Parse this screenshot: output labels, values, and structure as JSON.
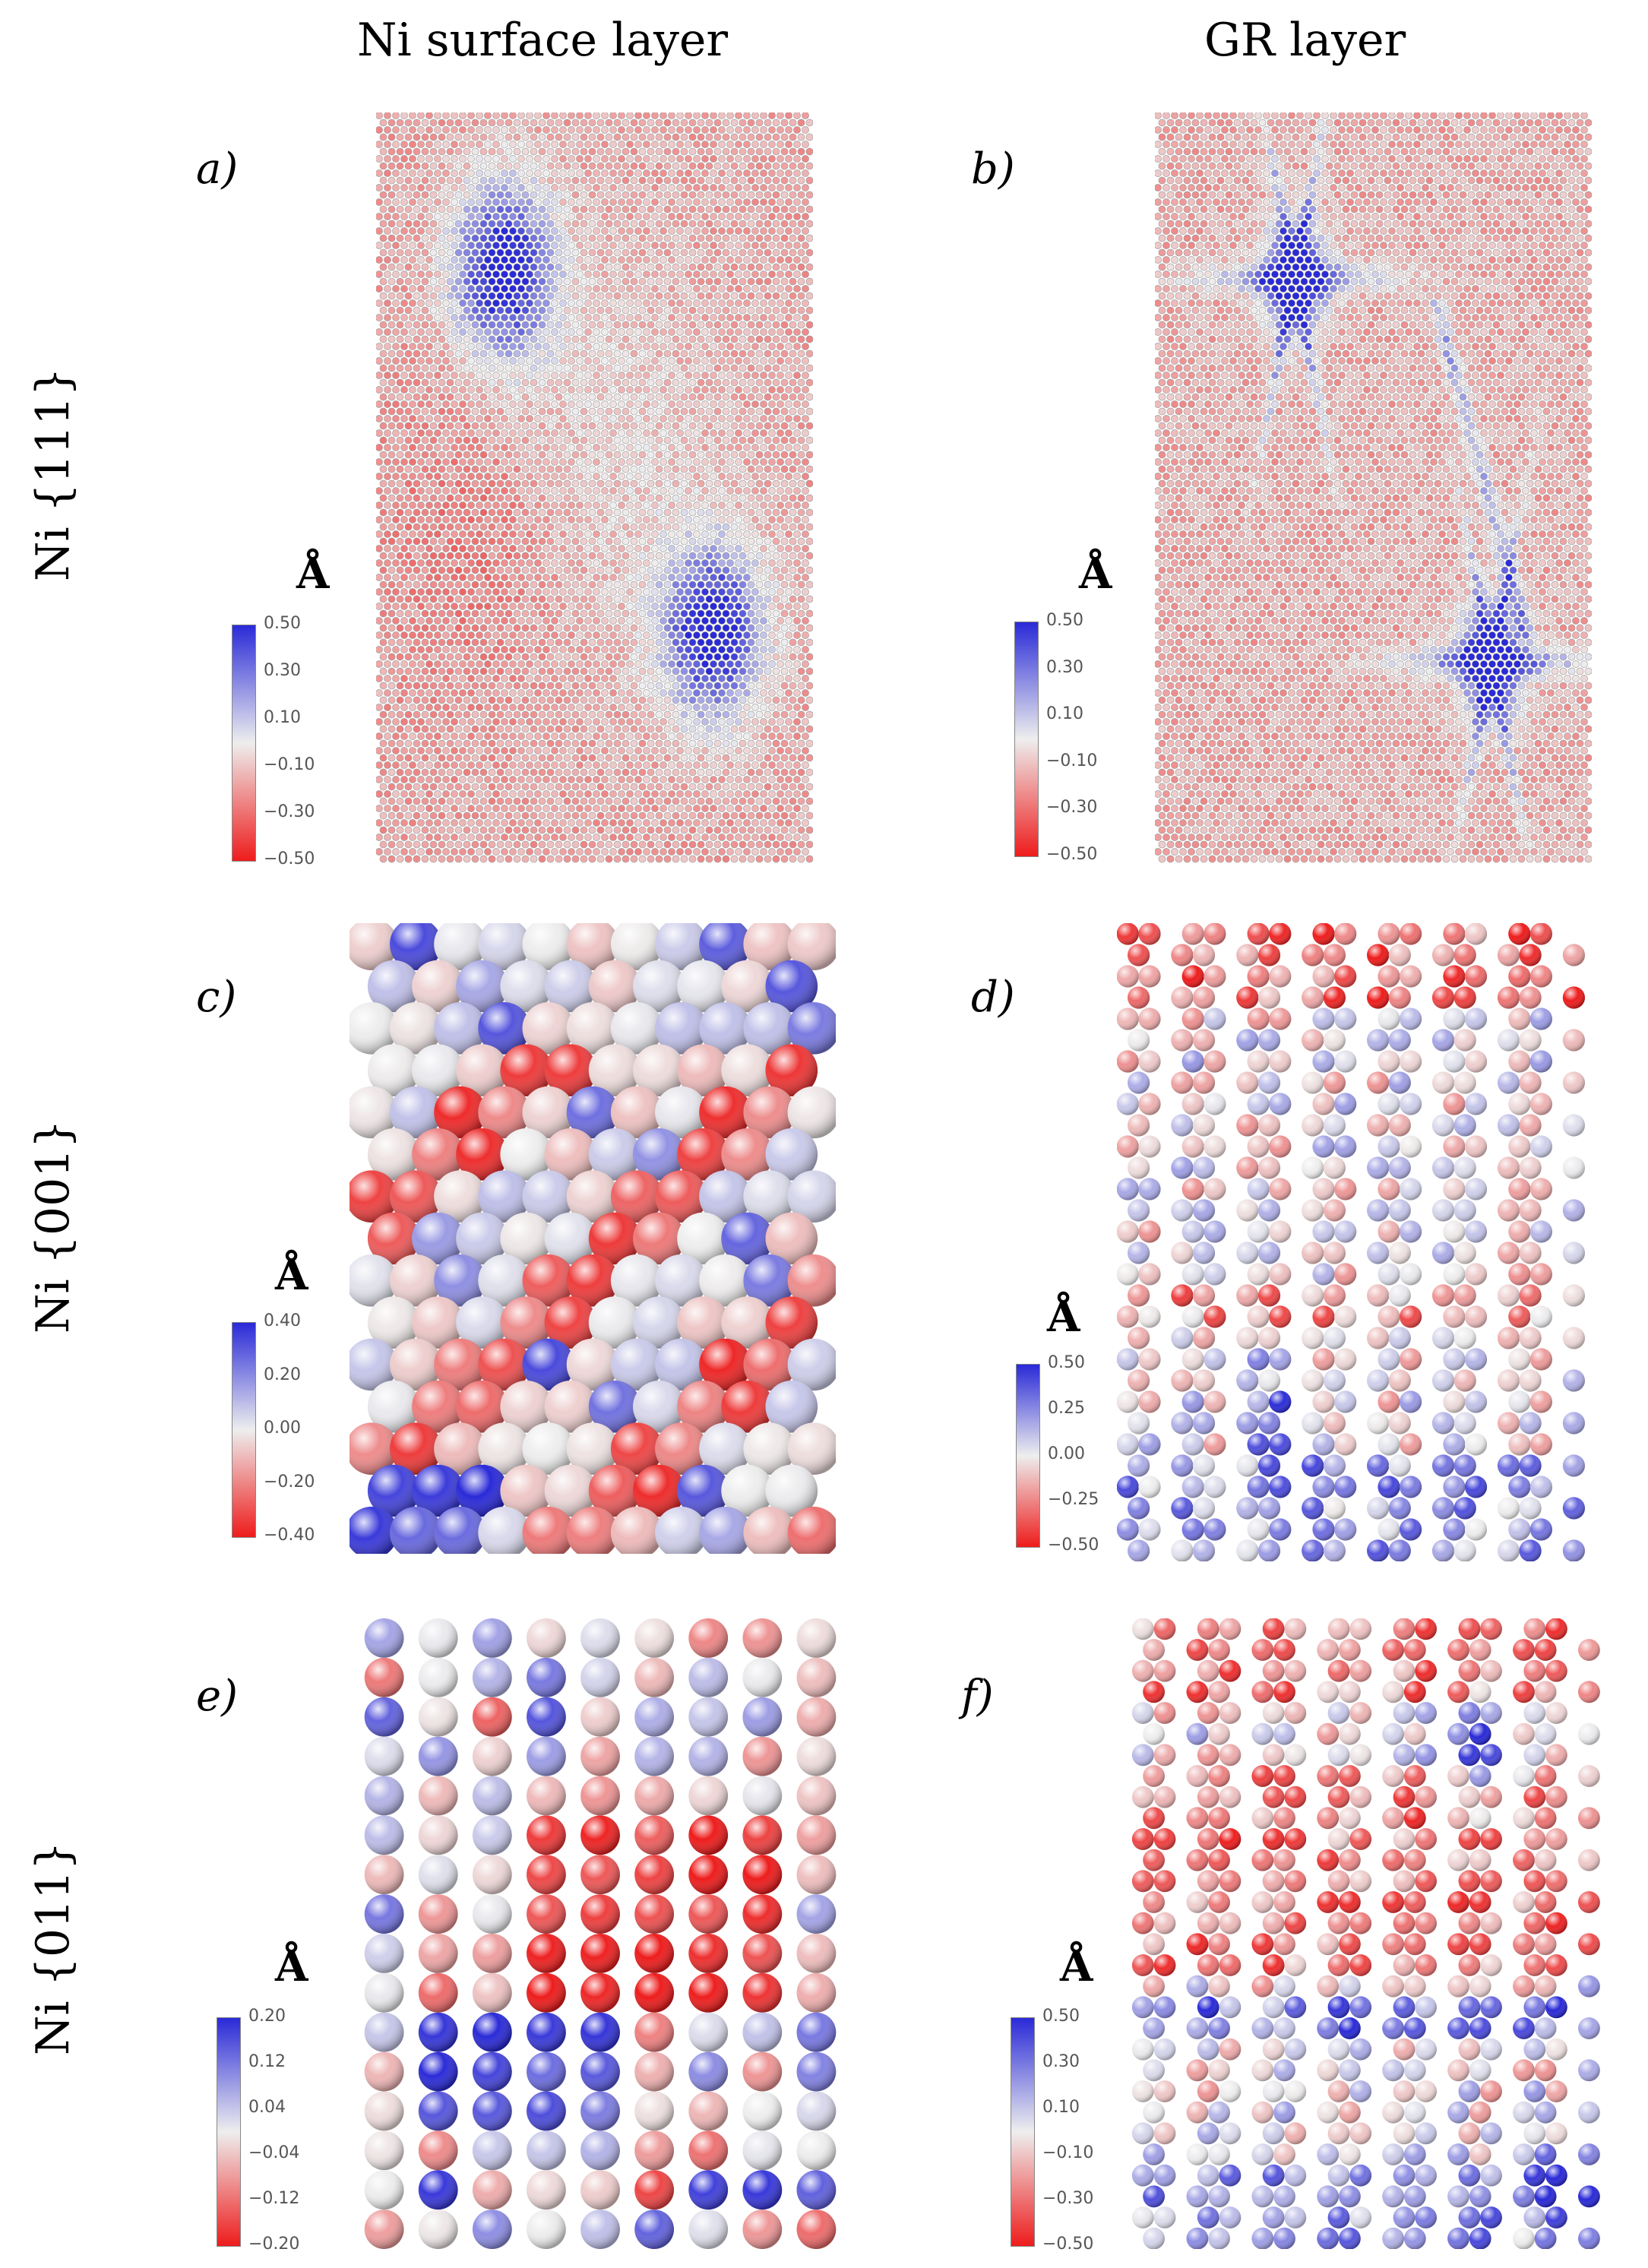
{
  "headers": {
    "col_left": "Ni surface layer",
    "col_right": "GR layer",
    "row_1": "Ni {111}",
    "row_2": "Ni {001}",
    "row_3": "Ni {011}"
  },
  "panels": [
    {
      "id": "a",
      "label": "a)",
      "unit": "Å",
      "ticks": [
        "0.50",
        "0.30",
        "0.10",
        "−0.10",
        "−0.30",
        "−0.50"
      ],
      "range": [
        -0.5,
        0.5
      ],
      "type": "dense"
    },
    {
      "id": "b",
      "label": "b)",
      "unit": "Å",
      "ticks": [
        "0.50",
        "0.30",
        "0.10",
        "−0.10",
        "−0.30",
        "−0.50"
      ],
      "range": [
        -0.5,
        0.5
      ],
      "type": "dense"
    },
    {
      "id": "c",
      "label": "c)",
      "unit": "Å",
      "ticks": [
        "0.40",
        "0.20",
        "0.00",
        "−0.20",
        "−0.40"
      ],
      "range": [
        -0.4,
        0.4
      ],
      "type": "spheres"
    },
    {
      "id": "d",
      "label": "d)",
      "unit": "Å",
      "ticks": [
        "0.50",
        "0.25",
        "0.00",
        "−0.25",
        "−0.50"
      ],
      "range": [
        -0.5,
        0.5
      ],
      "type": "graphene"
    },
    {
      "id": "e",
      "label": "e)",
      "unit": "Å",
      "ticks": [
        "0.20",
        "0.12",
        "0.04",
        "−0.04",
        "−0.12",
        "−0.20"
      ],
      "range": [
        -0.2,
        0.2
      ],
      "type": "spheres"
    },
    {
      "id": "f",
      "label": "f)",
      "unit": "Å",
      "ticks": [
        "0.50",
        "0.30",
        "0.10",
        "−0.10",
        "−0.30",
        "−0.50"
      ],
      "range": [
        -0.5,
        0.5
      ],
      "type": "graphene"
    }
  ],
  "colors": {
    "positive": "#2a2ad8",
    "zero": "#eeeeee",
    "negative": "#ee1c1c"
  }
}
